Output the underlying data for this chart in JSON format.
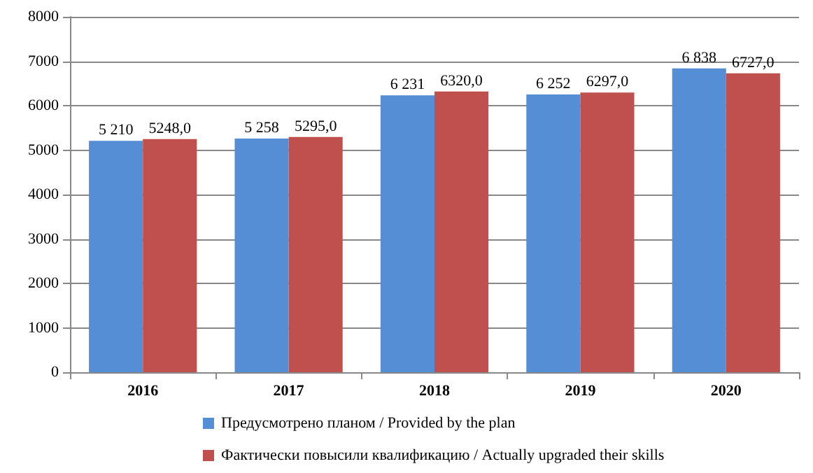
{
  "chart_data": {
    "type": "bar",
    "categories": [
      "2016",
      "2017",
      "2018",
      "2019",
      "2020"
    ],
    "series": [
      {
        "name": "Предусмотрено планом / Provided by the plan",
        "color": "#558ed5",
        "values": [
          5210,
          5258,
          6231,
          6252,
          6838
        ],
        "value_labels": [
          "5 210",
          "5 258",
          "6 231",
          "6 252",
          "6 838"
        ]
      },
      {
        "name": "Фактически повысили квалификацию / Actually upgraded their skills",
        "color": "#c0504d",
        "values": [
          5248,
          5295,
          6320,
          6297,
          6727
        ],
        "value_labels": [
          "5248,0",
          "5295,0",
          "6320,0",
          "6297,0",
          "6727,0"
        ]
      }
    ],
    "ylim": [
      0,
      8000
    ],
    "yticks": [
      0,
      1000,
      2000,
      3000,
      4000,
      5000,
      6000,
      7000,
      8000
    ],
    "grid": "y",
    "legend": "bottom"
  }
}
